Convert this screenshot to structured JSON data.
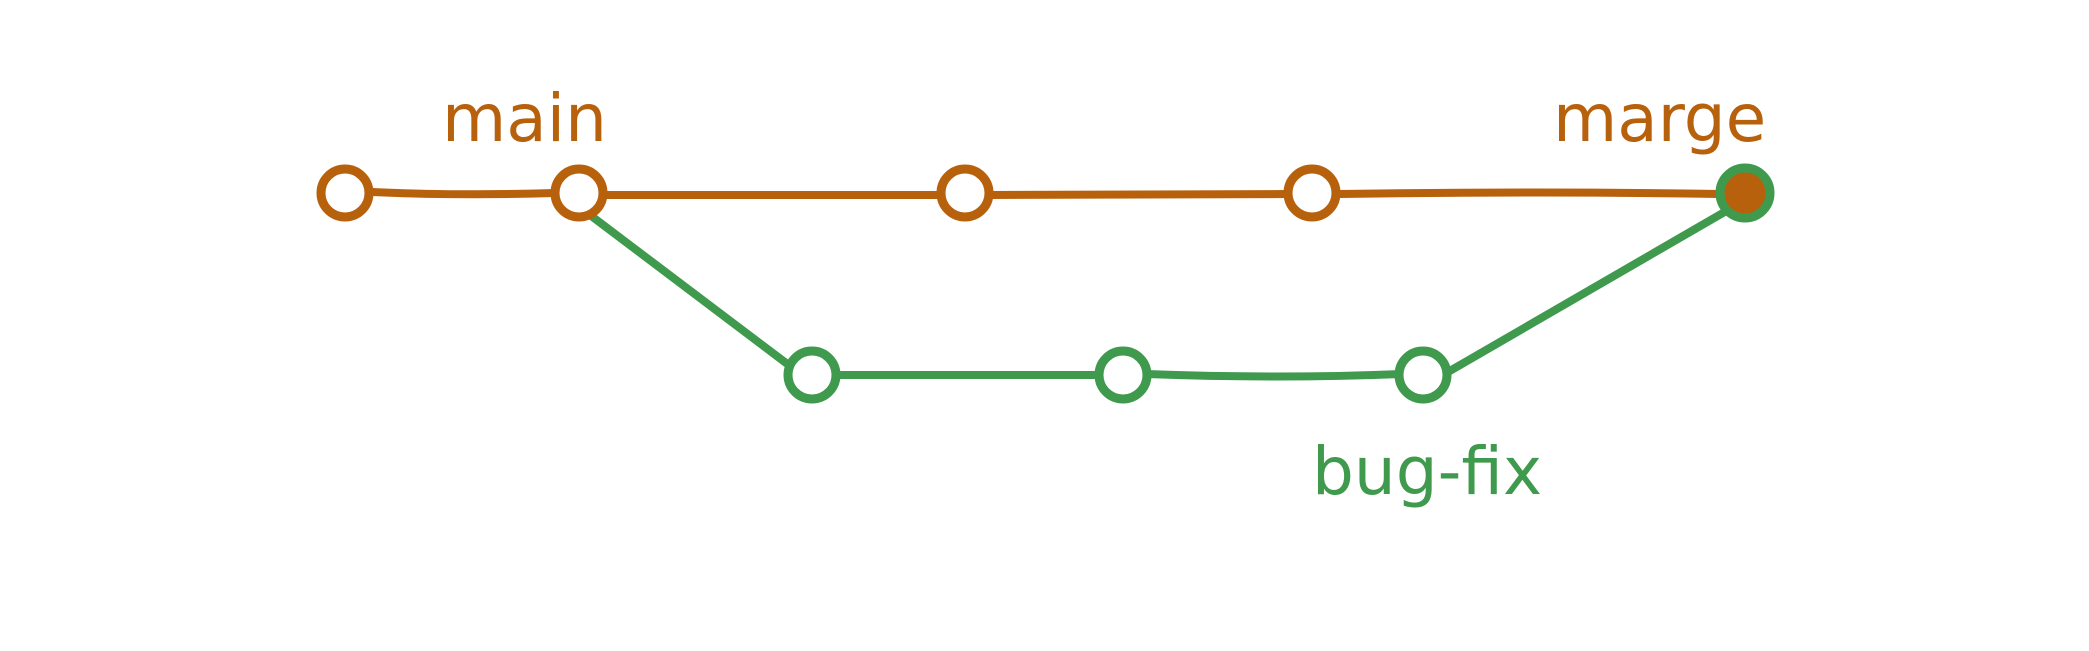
{
  "colors": {
    "main": "#B8610C",
    "bug_fix": "#3F9A4D",
    "node_fill": "#FFFFFF",
    "merge_fill": "#B8610C"
  },
  "labels": {
    "main": "main",
    "merge": "marge",
    "bug_fix": "bug-fix"
  }
}
